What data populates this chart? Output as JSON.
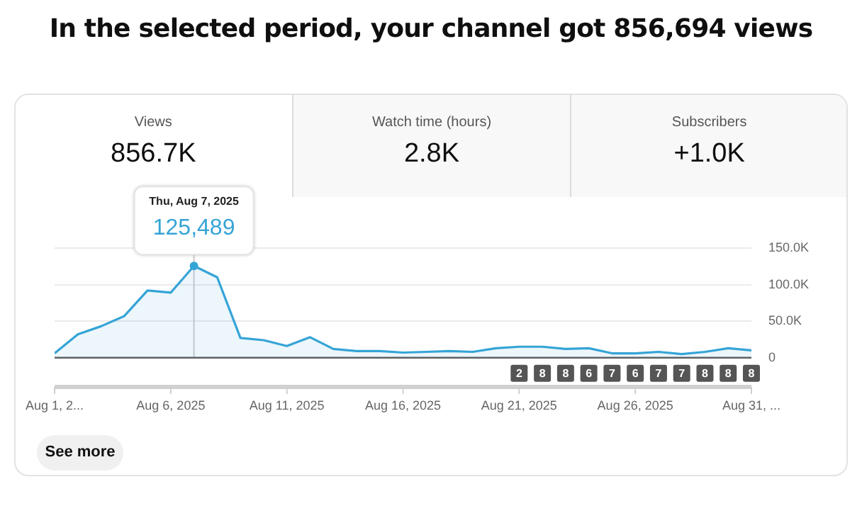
{
  "chart_data": [
    {
      "type": "other",
      "title": "In the selected period, your channel got 856,694 views",
      "categories": [
        "Views",
        "Watch time (hours)",
        "Subscribers"
      ],
      "value_labels": [
        "856.7K",
        "2.8K",
        "+1.0K"
      ]
    },
    {
      "type": "area",
      "x": [
        "2025-08-01",
        "2025-08-02",
        "2025-08-03",
        "2025-08-04",
        "2025-08-05",
        "2025-08-06",
        "2025-08-07",
        "2025-08-08",
        "2025-08-09",
        "2025-08-10",
        "2025-08-11",
        "2025-08-12",
        "2025-08-13",
        "2025-08-14",
        "2025-08-15",
        "2025-08-16",
        "2025-08-17",
        "2025-08-18",
        "2025-08-19",
        "2025-08-20",
        "2025-08-21",
        "2025-08-22",
        "2025-08-23",
        "2025-08-24",
        "2025-08-25",
        "2025-08-26",
        "2025-08-27",
        "2025-08-28",
        "2025-08-29",
        "2025-08-30",
        "2025-08-31"
      ],
      "series": [
        {
          "color": "#35a4d6",
          "values": [
            6000,
            32000,
            43000,
            57000,
            92000,
            89000,
            125489,
            110000,
            27000,
            24000,
            16000,
            28000,
            12000,
            9000,
            9000,
            7000,
            8000,
            9000,
            8000,
            13000,
            15000,
            15000,
            12000,
            13000,
            6000,
            6000,
            8000,
            5000,
            8000,
            13000,
            10000
          ]
        }
      ],
      "xlim": [
        "2025-08-01",
        "2025-08-31"
      ],
      "xticks": [
        {
          "value": "2025-08-01",
          "label": "Aug 1, 2..."
        },
        {
          "value": "2025-08-06",
          "label": "Aug 6, 2025"
        },
        {
          "value": "2025-08-11",
          "label": "Aug 11, 2025"
        },
        {
          "value": "2025-08-16",
          "label": "Aug 16, 2025"
        },
        {
          "value": "2025-08-21",
          "label": "Aug 21, 2025"
        },
        {
          "value": "2025-08-26",
          "label": "Aug 26, 2025"
        },
        {
          "value": "2025-08-31",
          "label": "Aug 31, ..."
        }
      ],
      "ylim": [
        -40000,
        150000
      ],
      "yticks": [
        0,
        {
          "value": 50000,
          "label": "50.0K"
        },
        {
          "value": 100000,
          "label": "100.0K"
        },
        {
          "value": 150000,
          "label": "150.0K"
        }
      ],
      "grid": "y",
      "legend": false,
      "marker": "none",
      "line_style": "solid",
      "ref_lines": [
        {
          "axis": "x",
          "value": "2025-08-07",
          "color": "#cccccc"
        }
      ],
      "annotations": [
        "Thu, Aug 7, 2025",
        "125,489",
        {
          "text": "2",
          "x": "2025-08-21"
        },
        {
          "text": "8",
          "x": "2025-08-22"
        },
        {
          "text": "8",
          "x": "2025-08-23"
        },
        {
          "text": "6",
          "x": "2025-08-24"
        },
        {
          "text": "7",
          "x": "2025-08-25"
        },
        {
          "text": "6",
          "x": "2025-08-26"
        },
        {
          "text": "7",
          "x": "2025-08-27"
        },
        {
          "text": "7",
          "x": "2025-08-28"
        },
        {
          "text": "8",
          "x": "2025-08-29"
        },
        {
          "text": "8",
          "x": "2025-08-30"
        },
        {
          "text": "8",
          "x": "2025-08-31"
        },
        "See more"
      ]
    }
  ]
}
